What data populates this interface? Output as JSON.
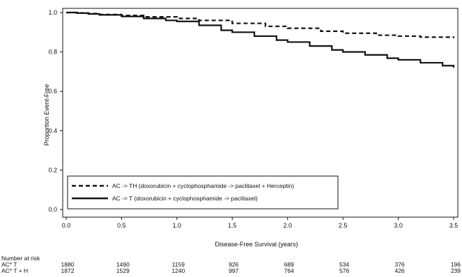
{
  "chart_data": {
    "type": "line",
    "xlabel": "Disease-Free Survival (years)",
    "ylabel": "Proportion Event-Free",
    "xlim": [
      0,
      3.5
    ],
    "ylim": [
      0,
      1.0
    ],
    "x_ticks": [
      0.0,
      0.5,
      1.0,
      1.5,
      2.0,
      2.5,
      3.0,
      3.5
    ],
    "x_tick_labels": [
      "0.0",
      "0.5",
      "1.0",
      "1.5",
      "2.0",
      "2.5",
      "3.0",
      "3.5"
    ],
    "y_ticks": [
      0.0,
      0.2,
      0.4,
      0.6,
      0.8,
      1.0
    ],
    "y_tick_labels": [
      "0.0",
      "0.2",
      "0.4",
      "0.6",
      "0.8",
      "1.0"
    ],
    "grid": false,
    "legend_position": "bottom-left",
    "series": [
      {
        "name": "AC -> TH (doxorubicin + cyclophosphamide -> paclitaxel + Herceptin)",
        "style": "dashed",
        "color": "#111111",
        "x": [
          0,
          0.1,
          0.2,
          0.3,
          0.5,
          0.7,
          1.0,
          1.2,
          1.5,
          1.8,
          2.0,
          2.3,
          2.5,
          2.8,
          3.0,
          3.2,
          3.5
        ],
        "y": [
          1.0,
          0.998,
          0.995,
          0.99,
          0.985,
          0.978,
          0.97,
          0.96,
          0.945,
          0.93,
          0.92,
          0.905,
          0.895,
          0.885,
          0.88,
          0.875,
          0.87
        ]
      },
      {
        "name": "AC -> T (doxorubicin + cyclophosphamide -> paclitaxel)",
        "style": "solid",
        "color": "#111111",
        "x": [
          0,
          0.1,
          0.2,
          0.3,
          0.5,
          0.7,
          0.9,
          1.0,
          1.2,
          1.4,
          1.5,
          1.7,
          1.9,
          2.0,
          2.2,
          2.4,
          2.5,
          2.7,
          2.9,
          3.0,
          3.2,
          3.4,
          3.5
        ],
        "y": [
          1.0,
          0.997,
          0.993,
          0.988,
          0.98,
          0.97,
          0.96,
          0.955,
          0.935,
          0.91,
          0.9,
          0.88,
          0.86,
          0.85,
          0.83,
          0.81,
          0.8,
          0.785,
          0.768,
          0.76,
          0.745,
          0.73,
          0.72
        ]
      }
    ],
    "number_at_risk": {
      "title": "Number at risk",
      "rows": [
        {
          "label": "AC* T",
          "values": [
            "1880",
            "1490",
            "1159",
            "926",
            "689",
            "534",
            "376",
            "196"
          ]
        },
        {
          "label": "AC* T + H",
          "values": [
            "1872",
            "1529",
            "1240",
            "997",
            "764",
            "576",
            "426",
            "239"
          ]
        }
      ]
    }
  }
}
